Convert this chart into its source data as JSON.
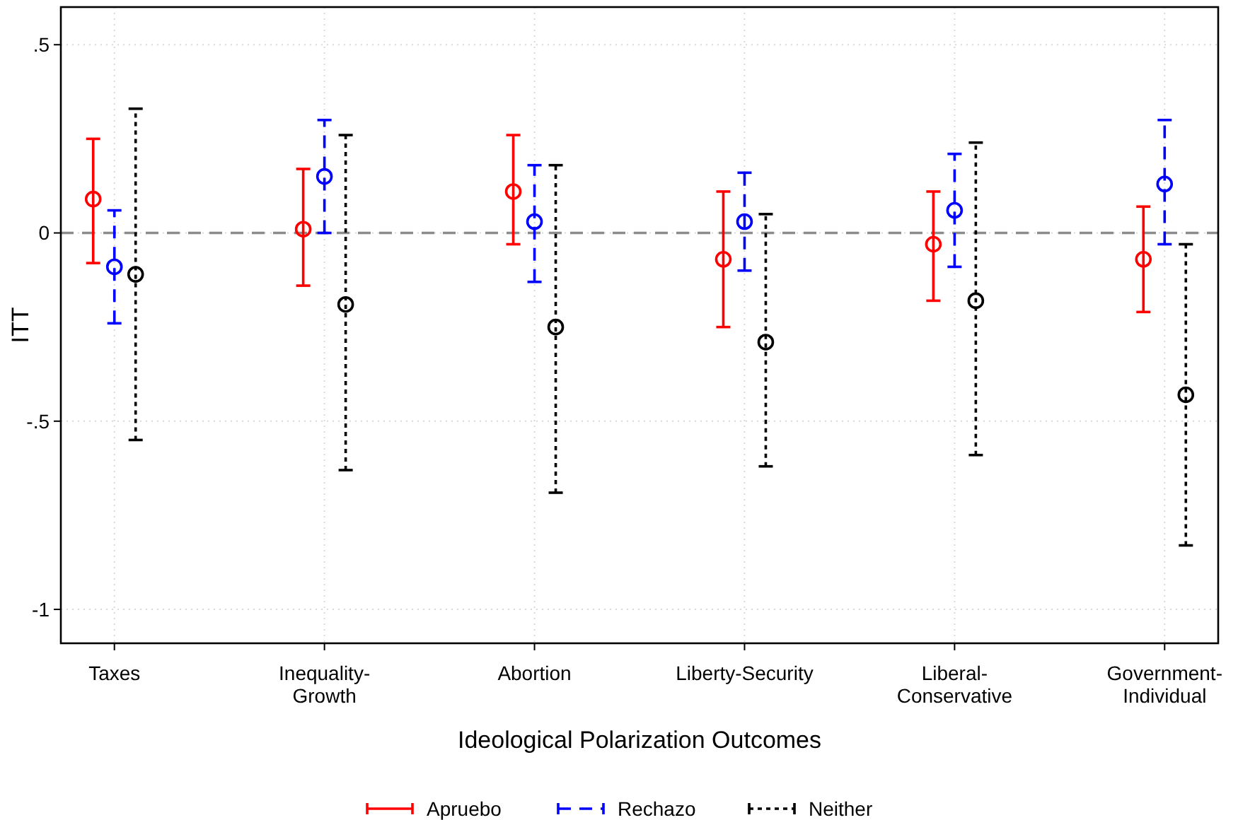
{
  "chart_data": {
    "type": "scatter",
    "xlabel": "Ideological Polarization Outcomes",
    "ylabel": "ITT",
    "categories": [
      "Taxes",
      "Inequality-\nGrowth",
      "Abortion",
      "Liberty-Security",
      "Liberal-\nConservative",
      "Government-\nIndividual"
    ],
    "ylim": [
      -1.09,
      0.6
    ],
    "yticks": [
      {
        "value": 0.5,
        "label": ".5"
      },
      0,
      {
        "value": -0.5,
        "label": "-.5"
      },
      -1
    ],
    "grid": true,
    "legend": "bottom",
    "marker": "circle",
    "ref_lines": [
      {
        "axis": "y",
        "value": 0,
        "color": "#8c8c8c",
        "line_style": "dashed"
      }
    ],
    "series": [
      {
        "name": "Apruebo",
        "color": "#ff0000",
        "line_style": "solid",
        "values": [
          0.09,
          0.01,
          0.11,
          -0.07,
          -0.03,
          -0.07
        ],
        "errors": [
          [
            -0.08,
            0.25
          ],
          [
            -0.14,
            0.17
          ],
          [
            -0.03,
            0.26
          ],
          [
            -0.25,
            0.11
          ],
          [
            -0.18,
            0.11
          ],
          [
            -0.21,
            0.07
          ]
        ]
      },
      {
        "name": "Rechazo",
        "color": "#0000ff",
        "line_style": "dashed",
        "values": [
          -0.09,
          0.15,
          0.03,
          0.03,
          0.06,
          0.13
        ],
        "errors": [
          [
            -0.24,
            0.06
          ],
          [
            0.0,
            0.3
          ],
          [
            -0.13,
            0.18
          ],
          [
            -0.1,
            0.16
          ],
          [
            -0.09,
            0.21
          ],
          [
            -0.03,
            0.3
          ]
        ]
      },
      {
        "name": "Neither",
        "color": "#000000",
        "line_style": "dotted",
        "values": [
          -0.11,
          -0.19,
          -0.25,
          -0.29,
          -0.18,
          -0.43
        ],
        "errors": [
          [
            -0.55,
            0.33
          ],
          [
            -0.63,
            0.26
          ],
          [
            -0.69,
            0.18
          ],
          [
            -0.62,
            0.05
          ],
          [
            -0.59,
            0.24
          ],
          [
            -0.83,
            -0.03
          ]
        ]
      }
    ]
  }
}
